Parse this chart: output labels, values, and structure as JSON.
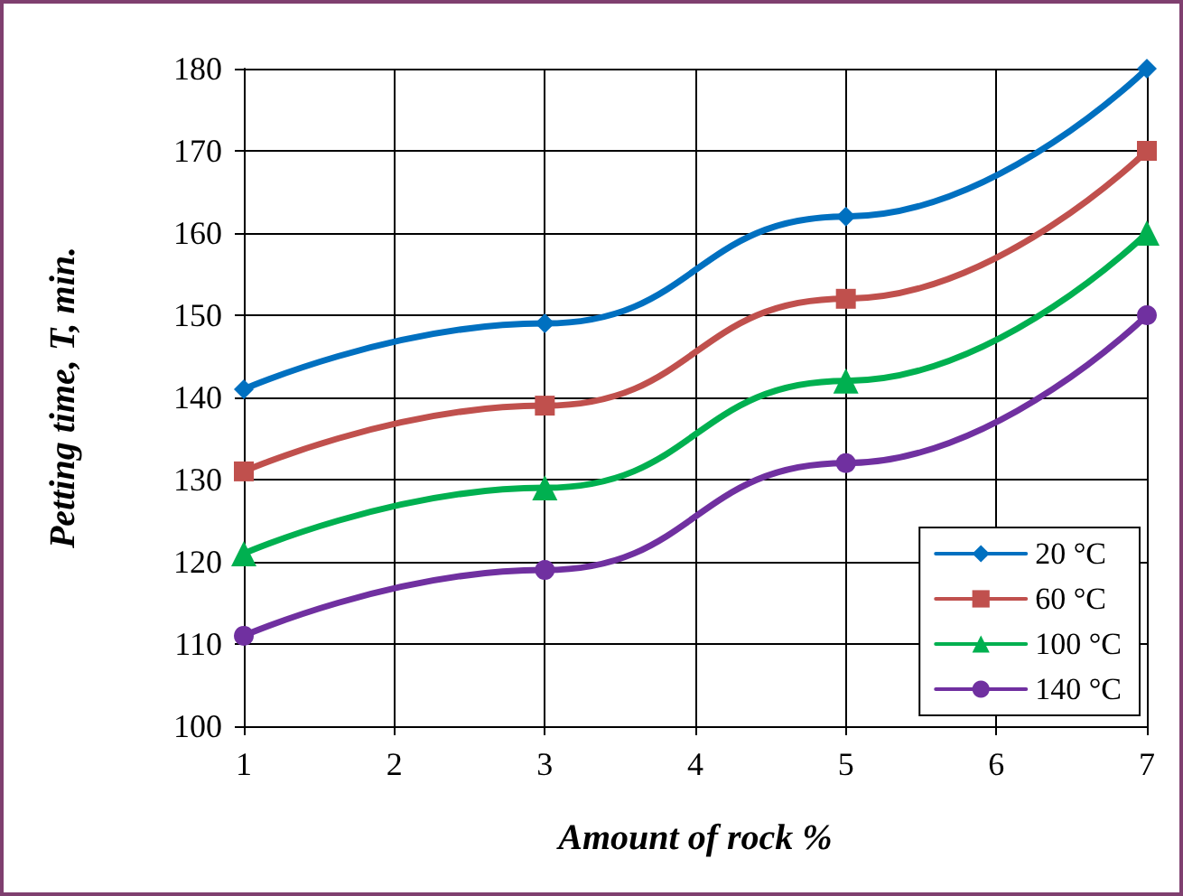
{
  "chart_data": {
    "type": "line",
    "xlabel": "Amount of rock %",
    "ylabel": "Petting time, T, min.",
    "x": [
      1,
      3,
      5,
      7
    ],
    "series": [
      {
        "name": "20 °C",
        "color": "#0070c0",
        "marker": "diamond",
        "values": [
          141,
          149,
          162,
          180
        ]
      },
      {
        "name": "60 °C",
        "color": "#c0504d",
        "marker": "square",
        "values": [
          131,
          139,
          152,
          170
        ]
      },
      {
        "name": "100 °C",
        "color": "#00b050",
        "marker": "triangle",
        "values": [
          121,
          129,
          142,
          160
        ]
      },
      {
        "name": "140 °C",
        "color": "#7030a0",
        "marker": "circle",
        "values": [
          111,
          119,
          132,
          150
        ]
      }
    ],
    "xlim": [
      1,
      7
    ],
    "xticks": [
      1,
      2,
      3,
      4,
      5,
      6,
      7
    ],
    "ylim": [
      100,
      180
    ],
    "yticks": [
      100,
      110,
      120,
      130,
      140,
      150,
      160,
      170,
      180
    ],
    "grid": true,
    "legend": "bottom right",
    "line_style": "solid"
  }
}
